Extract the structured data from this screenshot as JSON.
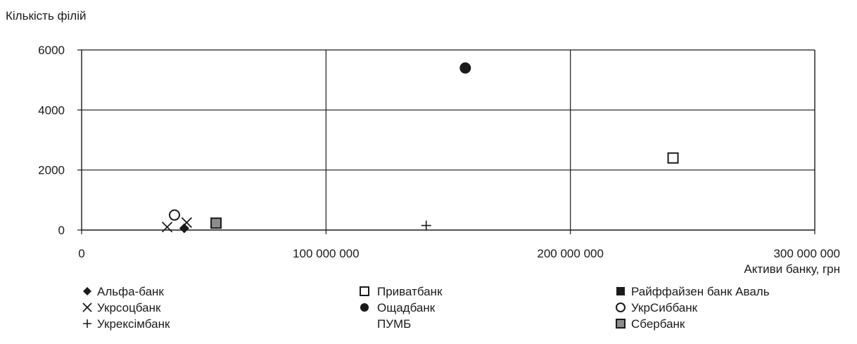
{
  "chart_data": {
    "type": "scatter",
    "ylabel": "Кількість філій",
    "xlabel": "Активи банку, грн",
    "xlim": [
      0,
      300000000
    ],
    "ylim": [
      0,
      6000
    ],
    "x_ticks": [
      {
        "value": 0,
        "label": "0"
      },
      {
        "value": 100000000,
        "label": "100 000 000"
      },
      {
        "value": 200000000,
        "label": "200 000 000"
      },
      {
        "value": 300000000,
        "label": "300 000 000"
      }
    ],
    "y_ticks": [
      {
        "value": 0,
        "label": "0"
      },
      {
        "value": 2000,
        "label": "2000"
      },
      {
        "value": 4000,
        "label": "4000"
      },
      {
        "value": 6000,
        "label": "6000"
      }
    ],
    "grid": true,
    "legend_position": "bottom",
    "series": [
      {
        "name": "Альфа-банк",
        "marker": "diamond",
        "color": "#1a1a1a",
        "points": [
          {
            "x": 42000000,
            "y": 60
          }
        ]
      },
      {
        "name": "Укрсоцбанк",
        "marker": "x",
        "color": "#1a1a1a",
        "points": [
          {
            "x": 35000000,
            "y": 100
          },
          {
            "x": 43000000,
            "y": 250
          }
        ]
      },
      {
        "name": "Укрексімбанк",
        "marker": "plus",
        "color": "#1a1a1a",
        "points": [
          {
            "x": 141000000,
            "y": 150
          }
        ]
      },
      {
        "name": "Приватбанк",
        "marker": "square-open",
        "color": "#1a1a1a",
        "points": [
          {
            "x": 242000000,
            "y": 2400
          }
        ]
      },
      {
        "name": "Ощадбанк",
        "marker": "circle-filled",
        "color": "#1a1a1a",
        "points": [
          {
            "x": 157000000,
            "y": 5400
          }
        ]
      },
      {
        "name": "ПУМБ",
        "marker": "none",
        "color": "#1a1a1a",
        "points": []
      },
      {
        "name": "Райффайзен банк Аваль",
        "marker": "square-filled",
        "color": "#1a1a1a",
        "points": []
      },
      {
        "name": "УкрСиббанк",
        "marker": "circle-open",
        "color": "#1a1a1a",
        "points": [
          {
            "x": 38000000,
            "y": 500
          }
        ]
      },
      {
        "name": "Сбербанк",
        "marker": "square-gray",
        "color": "#8c8c8c",
        "points": [
          {
            "x": 55000000,
            "y": 230
          }
        ]
      }
    ]
  }
}
